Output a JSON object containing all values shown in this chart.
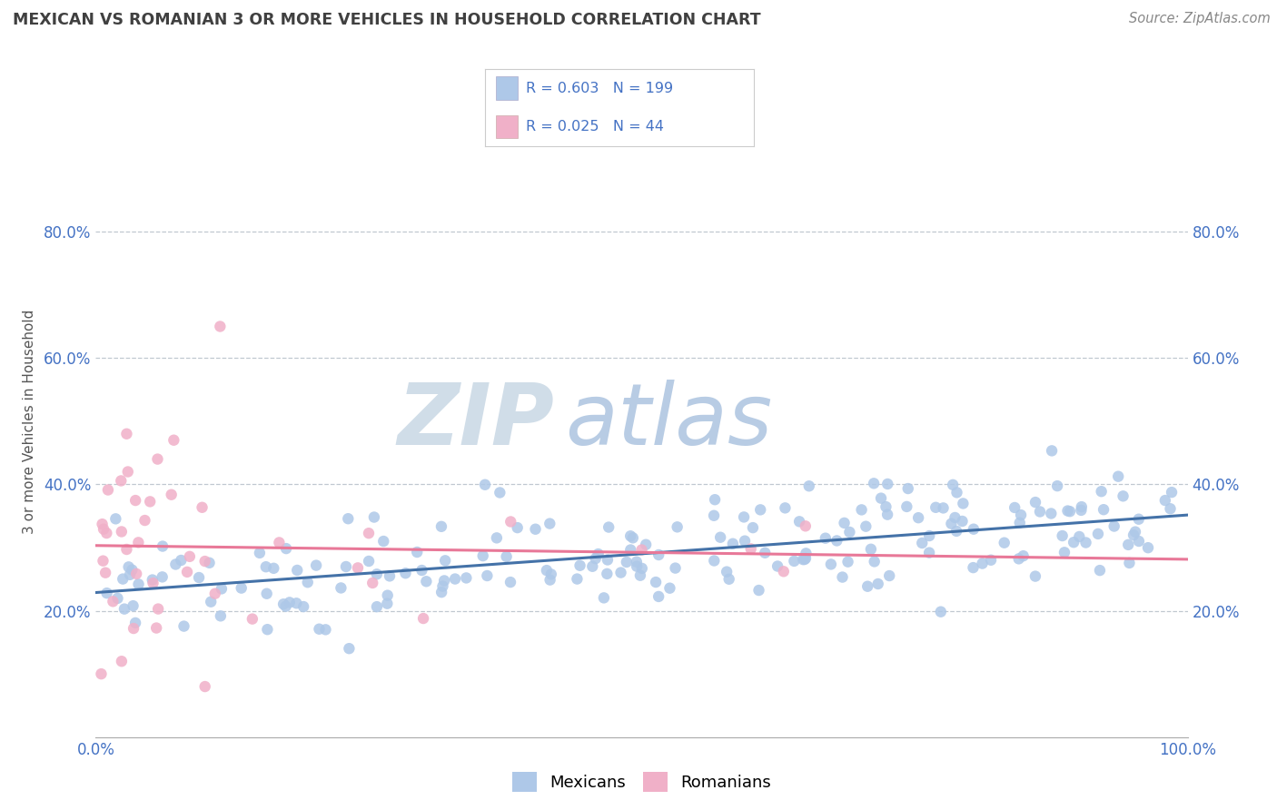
{
  "title": "MEXICAN VS ROMANIAN 3 OR MORE VEHICLES IN HOUSEHOLD CORRELATION CHART",
  "source": "Source: ZipAtlas.com",
  "ylabel": "3 or more Vehicles in Household",
  "xlim": [
    0,
    1.0
  ],
  "ylim": [
    0,
    1.0
  ],
  "mexican_R": 0.603,
  "mexican_N": 199,
  "romanian_R": 0.025,
  "romanian_N": 44,
  "mexican_color": "#aec8e8",
  "romanian_color": "#f0b0c8",
  "mexican_line_color": "#4472a8",
  "romanian_line_color": "#e87898",
  "title_color": "#404040",
  "source_color": "#888888",
  "watermark_color": "#d0dde8",
  "legend_text_color": "#4472c4",
  "background_color": "#ffffff",
  "grid_color": "#c0c8d0",
  "tick_label_color": "#4472c4",
  "ytick_vals": [
    0.2,
    0.4,
    0.6,
    0.8
  ],
  "ytick_labels": [
    "20.0%",
    "40.0%",
    "60.0%",
    "80.0%"
  ]
}
